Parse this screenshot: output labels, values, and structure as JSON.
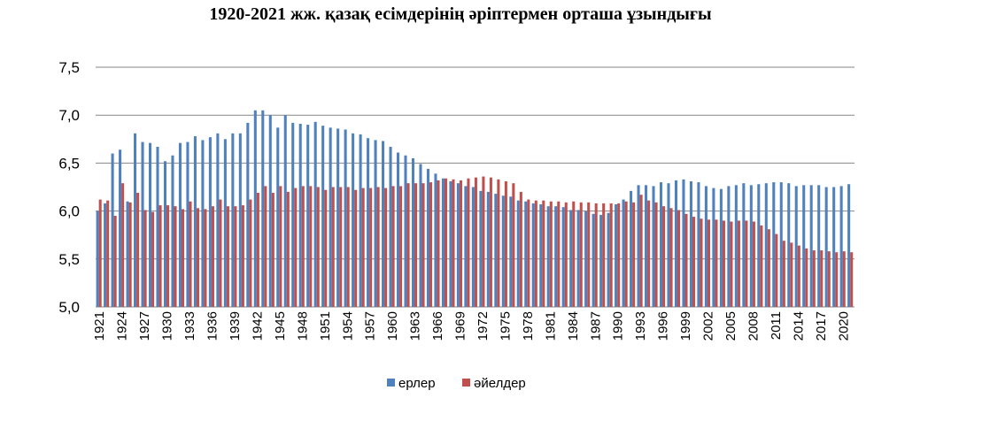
{
  "chart_data": {
    "type": "bar",
    "title": "1920-2021 жж. қазақ есімдерінің әріптермен орташа ұзындығы",
    "xlabel": "",
    "ylabel": "",
    "ylim": [
      5.0,
      7.5
    ],
    "yticks": [
      "5,0",
      "5,5",
      "6,0",
      "6,5",
      "7,0",
      "7,5"
    ],
    "grid": true,
    "legend": "bottom",
    "x_start": 1921,
    "x_end": 2021,
    "x_tick_step": 3,
    "series": [
      {
        "name": "ерлер",
        "color": "#4F81BD",
        "values": [
          6.0,
          6.08,
          6.6,
          6.64,
          6.1,
          6.81,
          6.72,
          6.71,
          6.67,
          6.52,
          6.58,
          6.71,
          6.72,
          6.78,
          6.74,
          6.77,
          6.81,
          6.75,
          6.81,
          6.81,
          6.92,
          7.05,
          7.05,
          7.0,
          6.87,
          7.0,
          6.92,
          6.91,
          6.9,
          6.93,
          6.89,
          6.87,
          6.86,
          6.85,
          6.81,
          6.8,
          6.76,
          6.74,
          6.73,
          6.67,
          6.61,
          6.58,
          6.55,
          6.49,
          6.44,
          6.39,
          6.34,
          6.31,
          6.29,
          6.26,
          6.25,
          6.21,
          6.2,
          6.18,
          6.16,
          6.15,
          6.11,
          6.1,
          6.08,
          6.07,
          6.05,
          6.05,
          6.04,
          6.01,
          6.01,
          6.0,
          5.97,
          5.96,
          5.98,
          6.07,
          6.12,
          6.21,
          6.27,
          6.27,
          6.26,
          6.3,
          6.29,
          6.32,
          6.33,
          6.31,
          6.3,
          6.26,
          6.24,
          6.23,
          6.26,
          6.27,
          6.29,
          6.27,
          6.28,
          6.29,
          6.3,
          6.3,
          6.29,
          6.26,
          6.27,
          6.27,
          6.27,
          6.25,
          6.25,
          6.26,
          6.28
        ]
      },
      {
        "name": "әйелдер",
        "color": "#C0504D",
        "values": [
          6.12,
          6.11,
          5.95,
          6.29,
          6.09,
          6.19,
          6.01,
          5.99,
          6.06,
          6.06,
          6.05,
          6.02,
          6.1,
          6.03,
          6.02,
          6.05,
          6.12,
          6.05,
          6.05,
          6.06,
          6.12,
          6.19,
          6.26,
          6.19,
          6.26,
          6.2,
          6.24,
          6.26,
          6.26,
          6.25,
          6.22,
          6.25,
          6.25,
          6.25,
          6.22,
          6.24,
          6.24,
          6.25,
          6.24,
          6.26,
          6.26,
          6.29,
          6.29,
          6.29,
          6.3,
          6.32,
          6.34,
          6.33,
          6.32,
          6.34,
          6.35,
          6.36,
          6.35,
          6.33,
          6.31,
          6.29,
          6.2,
          6.12,
          6.11,
          6.11,
          6.1,
          6.1,
          6.09,
          6.1,
          6.09,
          6.09,
          6.08,
          6.08,
          6.08,
          6.08,
          6.1,
          6.09,
          6.17,
          6.11,
          6.09,
          6.05,
          6.03,
          6.01,
          5.97,
          5.94,
          5.92,
          5.91,
          5.91,
          5.9,
          5.89,
          5.9,
          5.9,
          5.89,
          5.85,
          5.81,
          5.76,
          5.69,
          5.67,
          5.64,
          5.61,
          5.59,
          5.59,
          5.58,
          5.57,
          5.58,
          5.57
        ]
      }
    ]
  }
}
